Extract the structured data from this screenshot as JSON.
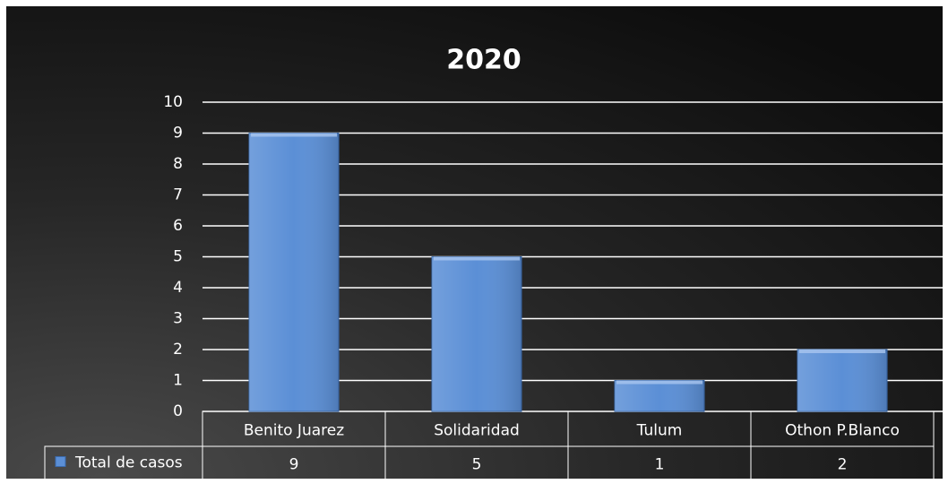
{
  "chart_data": {
    "type": "bar",
    "title": "2020",
    "categories": [
      "Benito Juarez",
      "Solidaridad",
      "Tulum",
      "Othon P.Blanco"
    ],
    "series": [
      {
        "name": "Total de casos",
        "color": "#5b8fd6",
        "values": [
          9,
          5,
          1,
          2
        ]
      }
    ],
    "ylim": [
      0,
      10
    ],
    "yticks": [
      0,
      1,
      2,
      3,
      4,
      5,
      6,
      7,
      8,
      9,
      10
    ],
    "grid": true,
    "data_table": true
  }
}
